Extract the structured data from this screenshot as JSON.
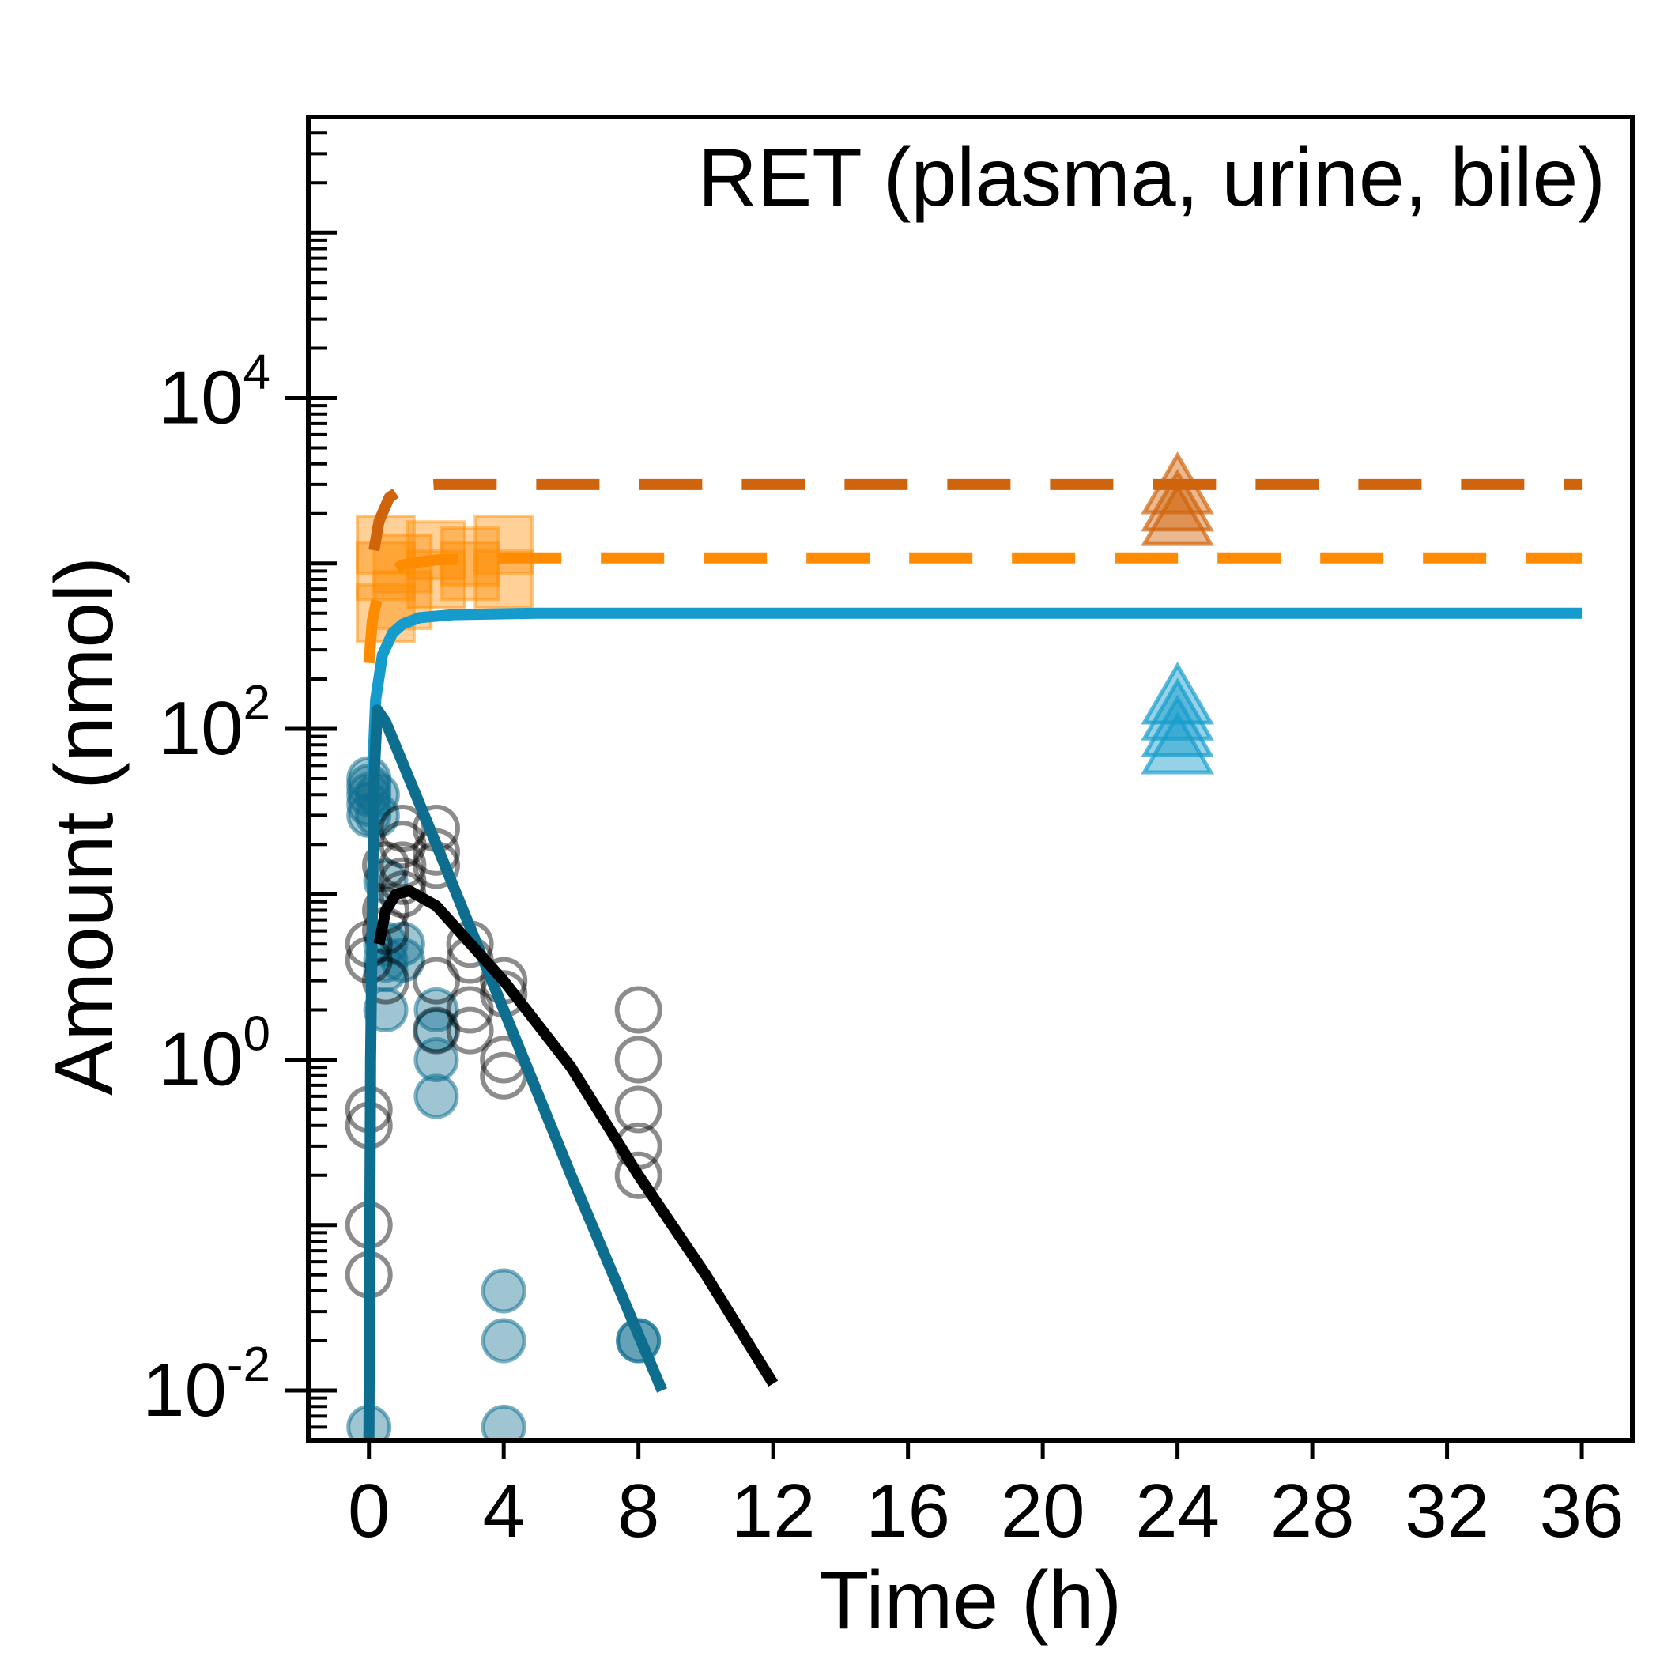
{
  "chart_data": {
    "type": "scatter",
    "title": "RET (plasma, urine, bile)",
    "xlabel": "Time (h)",
    "ylabel": "Amount (nmol)",
    "x_scale": "linear",
    "y_scale": "log",
    "xlim": [
      -1.8,
      37.5
    ],
    "ylim": [
      0.005,
      500000
    ],
    "x_ticks": [
      0,
      4,
      8,
      12,
      16,
      20,
      24,
      28,
      32,
      36
    ],
    "x_tick_labels": [
      "0",
      "4",
      "8",
      "12",
      "16",
      "20",
      "24",
      "28",
      "32",
      "36"
    ],
    "y_major_ticks": [
      0.01,
      1,
      100,
      10000
    ],
    "y_tick_labels": [
      {
        "base": "10",
        "exp": "-2"
      },
      {
        "base": "10",
        "exp": "0"
      },
      {
        "base": "10",
        "exp": "2"
      },
      {
        "base": "10",
        "exp": "4"
      }
    ],
    "grid": false,
    "legend": "none",
    "colors": {
      "dark_teal": "#0e6e8f",
      "light_blue": "#159ccc",
      "dark_orange": "#d0640c",
      "orange": "#ff8c00",
      "black": "#000000"
    },
    "series": [
      {
        "kind": "scatter",
        "marker": "circle-filled",
        "color": "#0e6e8f",
        "points": [
          [
            0,
            50
          ],
          [
            0,
            45
          ],
          [
            0,
            40
          ],
          [
            0,
            35
          ],
          [
            0,
            30
          ],
          [
            0.25,
            40
          ],
          [
            0.25,
            30
          ],
          [
            0.5,
            12
          ],
          [
            0.5,
            5
          ],
          [
            0.5,
            4
          ],
          [
            0.5,
            3.5
          ],
          [
            0.5,
            2
          ],
          [
            1,
            5
          ],
          [
            1,
            4
          ],
          [
            2,
            2
          ],
          [
            2,
            1.5
          ],
          [
            2,
            1
          ],
          [
            2,
            0.6
          ],
          [
            4,
            0.04
          ],
          [
            4,
            0.02
          ],
          [
            4,
            0.006
          ],
          [
            8,
            0.02
          ],
          [
            8,
            0.02
          ],
          [
            0,
            0.006
          ]
        ]
      },
      {
        "kind": "scatter",
        "marker": "circle-open",
        "color": "#000000",
        "points": [
          [
            0,
            5
          ],
          [
            0,
            4
          ],
          [
            0,
            0.5
          ],
          [
            0,
            0.4
          ],
          [
            0,
            0.1
          ],
          [
            0,
            0.05
          ],
          [
            0.5,
            15
          ],
          [
            0.5,
            8
          ],
          [
            0.5,
            6
          ],
          [
            0.5,
            3
          ],
          [
            1,
            25
          ],
          [
            1,
            20
          ],
          [
            1,
            15
          ],
          [
            1,
            12
          ],
          [
            1,
            10
          ],
          [
            2,
            25
          ],
          [
            2,
            18
          ],
          [
            2,
            15
          ],
          [
            2,
            3
          ],
          [
            2,
            1.5
          ],
          [
            3,
            5
          ],
          [
            3,
            4
          ],
          [
            3,
            2
          ],
          [
            3,
            1.5
          ],
          [
            4,
            3
          ],
          [
            4,
            2.5
          ],
          [
            4,
            1
          ],
          [
            4,
            0.8
          ],
          [
            8,
            2
          ],
          [
            8,
            1
          ],
          [
            8,
            0.5
          ],
          [
            8,
            0.3
          ],
          [
            8,
            0.2
          ]
        ]
      },
      {
        "kind": "scatter",
        "marker": "square-filled",
        "color": "#ff8c00",
        "points": [
          [
            0.5,
            1300
          ],
          [
            0.5,
            900
          ],
          [
            0.5,
            500
          ],
          [
            1,
            1000
          ],
          [
            1,
            600
          ],
          [
            2,
            1200
          ],
          [
            2,
            800
          ],
          [
            3,
            1100
          ],
          [
            3,
            900
          ],
          [
            4,
            1300
          ],
          [
            4,
            800
          ]
        ]
      },
      {
        "kind": "scatter",
        "marker": "triangle-filled",
        "color": "#d0640c",
        "points": [
          [
            24,
            2800
          ],
          [
            24,
            2200
          ],
          [
            24,
            1800
          ]
        ]
      },
      {
        "kind": "scatter",
        "marker": "triangle-filled",
        "color": "#159ccc",
        "points": [
          [
            24,
            150
          ],
          [
            24,
            120
          ],
          [
            24,
            95
          ],
          [
            24,
            75
          ]
        ]
      },
      {
        "kind": "line",
        "style": "dashed",
        "color": "#d0640c",
        "points": [
          [
            0.15,
            1200
          ],
          [
            0.3,
            1800
          ],
          [
            0.6,
            2500
          ],
          [
            1,
            2850
          ],
          [
            1.5,
            2950
          ],
          [
            2,
            3000
          ],
          [
            36,
            3000
          ]
        ]
      },
      {
        "kind": "line",
        "style": "dashed",
        "color": "#ff8c00",
        "points": [
          [
            0,
            250
          ],
          [
            0.1,
            450
          ],
          [
            0.3,
            700
          ],
          [
            0.6,
            880
          ],
          [
            1,
            980
          ],
          [
            1.5,
            1020
          ],
          [
            2,
            1050
          ],
          [
            4,
            1080
          ],
          [
            36,
            1080
          ]
        ]
      },
      {
        "kind": "line",
        "style": "solid",
        "color": "#159ccc",
        "points": [
          [
            0.1,
            50
          ],
          [
            0.2,
            150
          ],
          [
            0.4,
            280
          ],
          [
            0.7,
            380
          ],
          [
            1,
            430
          ],
          [
            1.5,
            470
          ],
          [
            2.5,
            490
          ],
          [
            5,
            500
          ],
          [
            36,
            500
          ]
        ]
      },
      {
        "kind": "line",
        "style": "solid",
        "color": "#0e6e8f",
        "points": [
          [
            0,
            0.005
          ],
          [
            0.05,
            1
          ],
          [
            0.15,
            50
          ],
          [
            0.25,
            130
          ],
          [
            0.5,
            110
          ],
          [
            2,
            20
          ],
          [
            4,
            2
          ],
          [
            6,
            0.2
          ],
          [
            8.7,
            0.01
          ]
        ]
      },
      {
        "kind": "line",
        "style": "solid",
        "color": "#000000",
        "points": [
          [
            0.3,
            5
          ],
          [
            0.5,
            8
          ],
          [
            0.8,
            10
          ],
          [
            1.2,
            10.5
          ],
          [
            2,
            8.5
          ],
          [
            4,
            3
          ],
          [
            6,
            0.9
          ],
          [
            8,
            0.2
          ],
          [
            10,
            0.05
          ],
          [
            12,
            0.011
          ]
        ]
      }
    ]
  }
}
